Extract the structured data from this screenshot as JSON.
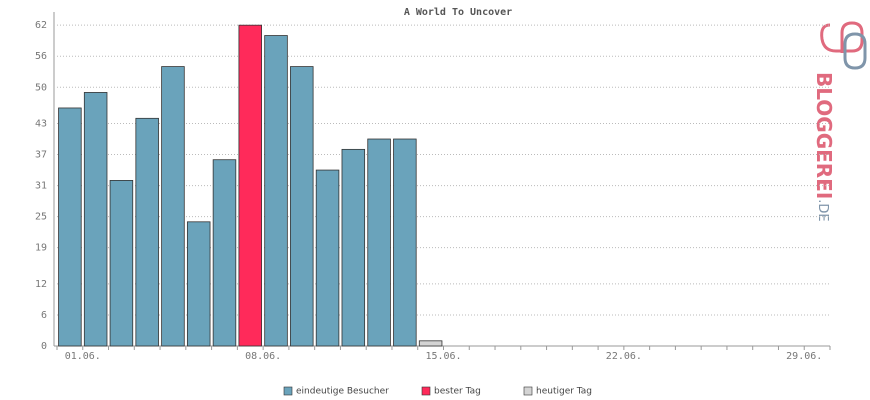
{
  "chart_data": {
    "type": "bar",
    "title": "A World To Uncover",
    "categories": [
      null,
      "01.06.",
      null,
      null,
      null,
      null,
      null,
      null,
      "08.06.",
      null,
      null,
      null,
      null,
      null,
      null,
      "15.06.",
      null,
      null,
      null,
      null,
      null,
      null,
      "22.06.",
      null,
      null,
      null,
      null,
      null,
      null,
      "29.06."
    ],
    "series": [
      {
        "name": "eindeutige Besucher",
        "color": "#6aa3bb",
        "values": [
          46,
          49,
          32,
          44,
          54,
          24,
          36,
          null,
          60,
          54,
          34,
          38,
          40,
          40,
          null,
          null,
          null,
          null,
          null,
          null,
          null,
          null,
          null,
          null,
          null,
          null,
          null,
          null,
          null,
          null
        ]
      },
      {
        "name": "bester Tag",
        "color": "#ff2a5a",
        "values": [
          null,
          null,
          null,
          null,
          null,
          null,
          null,
          62,
          null,
          null,
          null,
          null,
          null,
          null,
          null,
          null,
          null,
          null,
          null,
          null,
          null,
          null,
          null,
          null,
          null,
          null,
          null,
          null,
          null,
          null
        ]
      },
      {
        "name": "heutiger Tag",
        "color": "#d4d4d4",
        "values": [
          null,
          null,
          null,
          null,
          null,
          null,
          null,
          null,
          null,
          null,
          null,
          null,
          null,
          null,
          1,
          null,
          null,
          null,
          null,
          null,
          null,
          null,
          null,
          null,
          null,
          null,
          null,
          null,
          null,
          null
        ]
      }
    ],
    "ylim": [
      0,
      63
    ],
    "yticks": [
      0,
      6,
      12,
      19,
      25,
      31,
      37,
      43,
      50,
      56,
      62
    ],
    "grid": true
  },
  "watermark": "BLOGGEREI",
  "watermark_suffix": ".DE"
}
